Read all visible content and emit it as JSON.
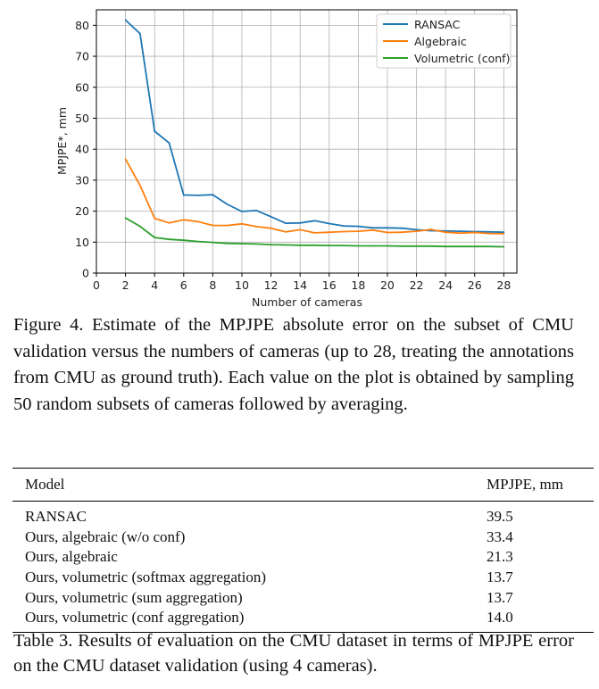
{
  "chart_data": {
    "type": "line",
    "xlabel": "Number of cameras",
    "ylabel": "MPJPE*, mm",
    "xlim": [
      0,
      28.9
    ],
    "ylim": [
      0,
      85
    ],
    "xticks": [
      0,
      2,
      4,
      6,
      8,
      10,
      12,
      14,
      16,
      18,
      20,
      22,
      24,
      26,
      28
    ],
    "yticks": [
      0,
      10,
      20,
      30,
      40,
      50,
      60,
      70,
      80
    ],
    "grid": true,
    "legend_position": "top-right",
    "x": [
      2,
      3,
      4,
      5,
      6,
      7,
      8,
      9,
      10,
      11,
      12,
      13,
      14,
      15,
      16,
      17,
      18,
      19,
      20,
      21,
      22,
      23,
      24,
      25,
      26,
      27,
      28
    ],
    "series": [
      {
        "name": "RANSAC",
        "color": "#1f77b4",
        "values": [
          81.7,
          77.3,
          45.8,
          42,
          25.2,
          25.1,
          25.3,
          22.2,
          19.9,
          20.2,
          18.2,
          16.1,
          16.2,
          16.9,
          16.0,
          15.2,
          15.1,
          14.6,
          14.6,
          14.5,
          14.0,
          13.7,
          13.6,
          13.5,
          13.4,
          13.3,
          13.2
        ]
      },
      {
        "name": "Algebraic",
        "color": "#ff7f0e",
        "values": [
          36.8,
          28.3,
          17.7,
          16.2,
          17.2,
          16.6,
          15.4,
          15.4,
          15.9,
          15.0,
          14.5,
          13.3,
          14.0,
          13.0,
          13.2,
          13.4,
          13.5,
          13.9,
          13.1,
          13.2,
          13.5,
          14.1,
          13.2,
          12.9,
          13.1,
          12.8,
          12.7
        ]
      },
      {
        "name": "Volumetric (conf)",
        "color": "#2ca02c",
        "values": [
          17.8,
          15.1,
          11.5,
          10.9,
          10.6,
          10.2,
          9.9,
          9.6,
          9.5,
          9.4,
          9.2,
          9.1,
          9.0,
          9.0,
          8.9,
          8.9,
          8.8,
          8.8,
          8.8,
          8.7,
          8.7,
          8.7,
          8.6,
          8.6,
          8.6,
          8.6,
          8.5
        ]
      }
    ]
  },
  "figure_caption": "Figure 4. Estimate of the MPJPE absolute error on the subset of CMU validation versus the numbers of cameras (up to 28, treating the annotations from CMU as ground truth). Each value on the plot is obtained by sampling 50 random subsets of cameras followed by averaging.",
  "table": {
    "headers": [
      "Model",
      "MPJPE, mm"
    ],
    "rows": [
      {
        "model": "RANSAC",
        "value": "39.5",
        "bold_model": false,
        "bold_value": false
      },
      {
        "model": "Ours, algebraic (w/o conf)",
        "value": "33.4",
        "bold_model": true,
        "bold_value": false
      },
      {
        "model": "Ours, algebraic",
        "value": "21.3",
        "bold_model": true,
        "bold_value": false
      },
      {
        "model": "Ours, volumetric (softmax aggregation)",
        "value": "13.7",
        "bold_model": true,
        "bold_value": true
      },
      {
        "model": "Ours, volumetric (sum aggregation)",
        "value": "13.7",
        "bold_model": true,
        "bold_value": true
      },
      {
        "model": "Ours, volumetric (conf aggregation)",
        "value": "14.0",
        "bold_model": true,
        "bold_value": false
      }
    ]
  },
  "table_caption": "Table 3. Results of evaluation on the CMU dataset in terms of MPJPE error on the CMU dataset validation (using 4 cameras)."
}
